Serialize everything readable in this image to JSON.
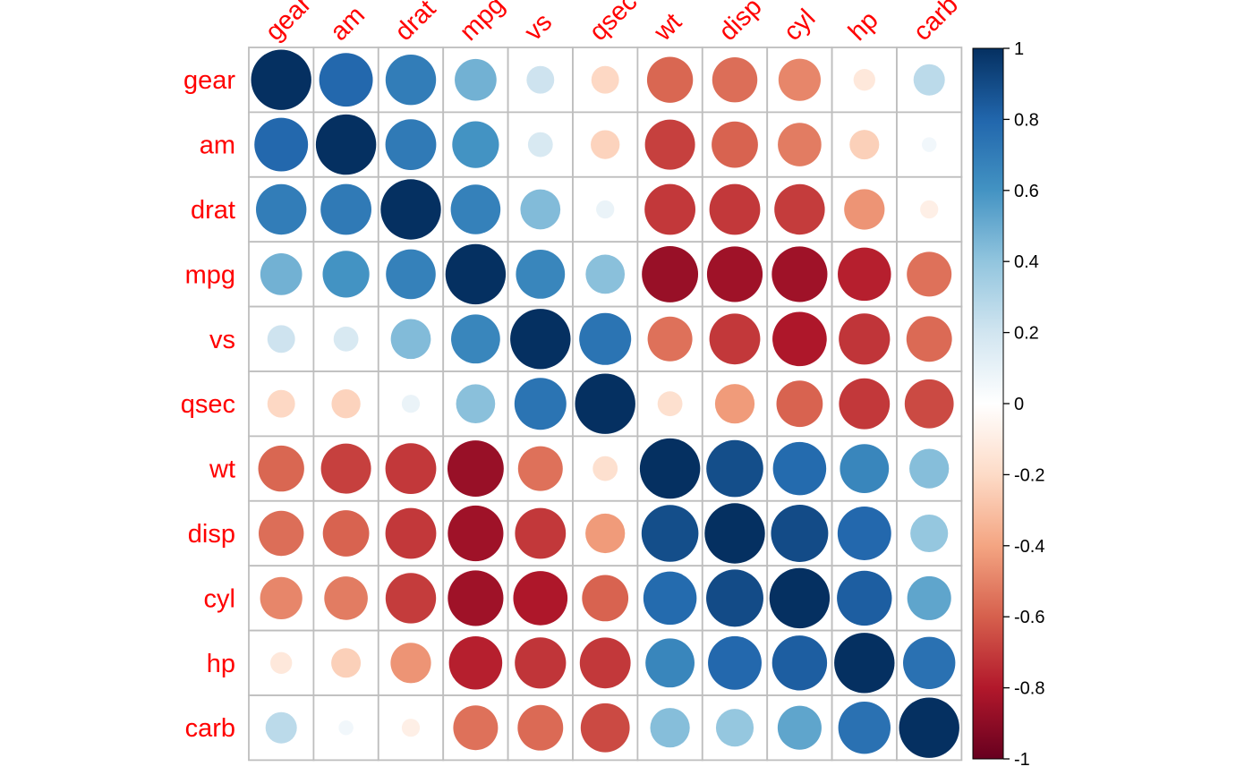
{
  "chart_data": {
    "type": "heatmap",
    "variables": [
      "gear",
      "am",
      "drat",
      "mpg",
      "vs",
      "qsec",
      "wt",
      "disp",
      "cyl",
      "hp",
      "carb"
    ],
    "matrix": [
      [
        1.0,
        0.79,
        0.7,
        0.48,
        0.21,
        -0.21,
        -0.58,
        -0.56,
        -0.49,
        -0.13,
        0.27
      ],
      [
        0.79,
        1.0,
        0.71,
        0.6,
        0.17,
        -0.23,
        -0.69,
        -0.59,
        -0.52,
        -0.24,
        0.06
      ],
      [
        0.7,
        0.71,
        1.0,
        0.68,
        0.44,
        0.09,
        -0.71,
        -0.71,
        -0.7,
        -0.45,
        -0.09
      ],
      [
        0.48,
        0.6,
        0.68,
        1.0,
        0.66,
        0.42,
        -0.87,
        -0.85,
        -0.85,
        -0.78,
        -0.55
      ],
      [
        0.21,
        0.17,
        0.44,
        0.66,
        1.0,
        0.74,
        -0.55,
        -0.71,
        -0.81,
        -0.72,
        -0.57
      ],
      [
        -0.21,
        -0.23,
        0.09,
        0.42,
        0.74,
        1.0,
        -0.17,
        -0.43,
        -0.59,
        -0.71,
        -0.66
      ],
      [
        -0.58,
        -0.69,
        -0.71,
        -0.87,
        -0.55,
        -0.17,
        1.0,
        0.89,
        0.78,
        0.66,
        0.43
      ],
      [
        -0.56,
        -0.59,
        -0.71,
        -0.85,
        -0.71,
        -0.43,
        0.89,
        1.0,
        0.9,
        0.79,
        0.39
      ],
      [
        -0.49,
        -0.52,
        -0.7,
        -0.85,
        -0.81,
        -0.59,
        0.78,
        0.9,
        1.0,
        0.83,
        0.53
      ],
      [
        -0.13,
        -0.24,
        -0.45,
        -0.78,
        -0.72,
        -0.71,
        0.66,
        0.79,
        0.83,
        1.0,
        0.75
      ],
      [
        0.27,
        0.06,
        -0.09,
        -0.55,
        -0.57,
        -0.66,
        0.43,
        0.39,
        0.53,
        0.75,
        1.0
      ]
    ],
    "colorbar": {
      "ticks": [
        "1",
        "0.8",
        "0.6",
        "0.4",
        "0.2",
        "0",
        "-0.2",
        "-0.4",
        "-0.6",
        "-0.8",
        "-1"
      ],
      "range": [
        -1,
        1
      ]
    },
    "colors": {
      "negative_end": "#67001F",
      "positive_end": "#053061",
      "label": "#FF0000",
      "grid": "#BEBEBE"
    },
    "grid": true
  }
}
